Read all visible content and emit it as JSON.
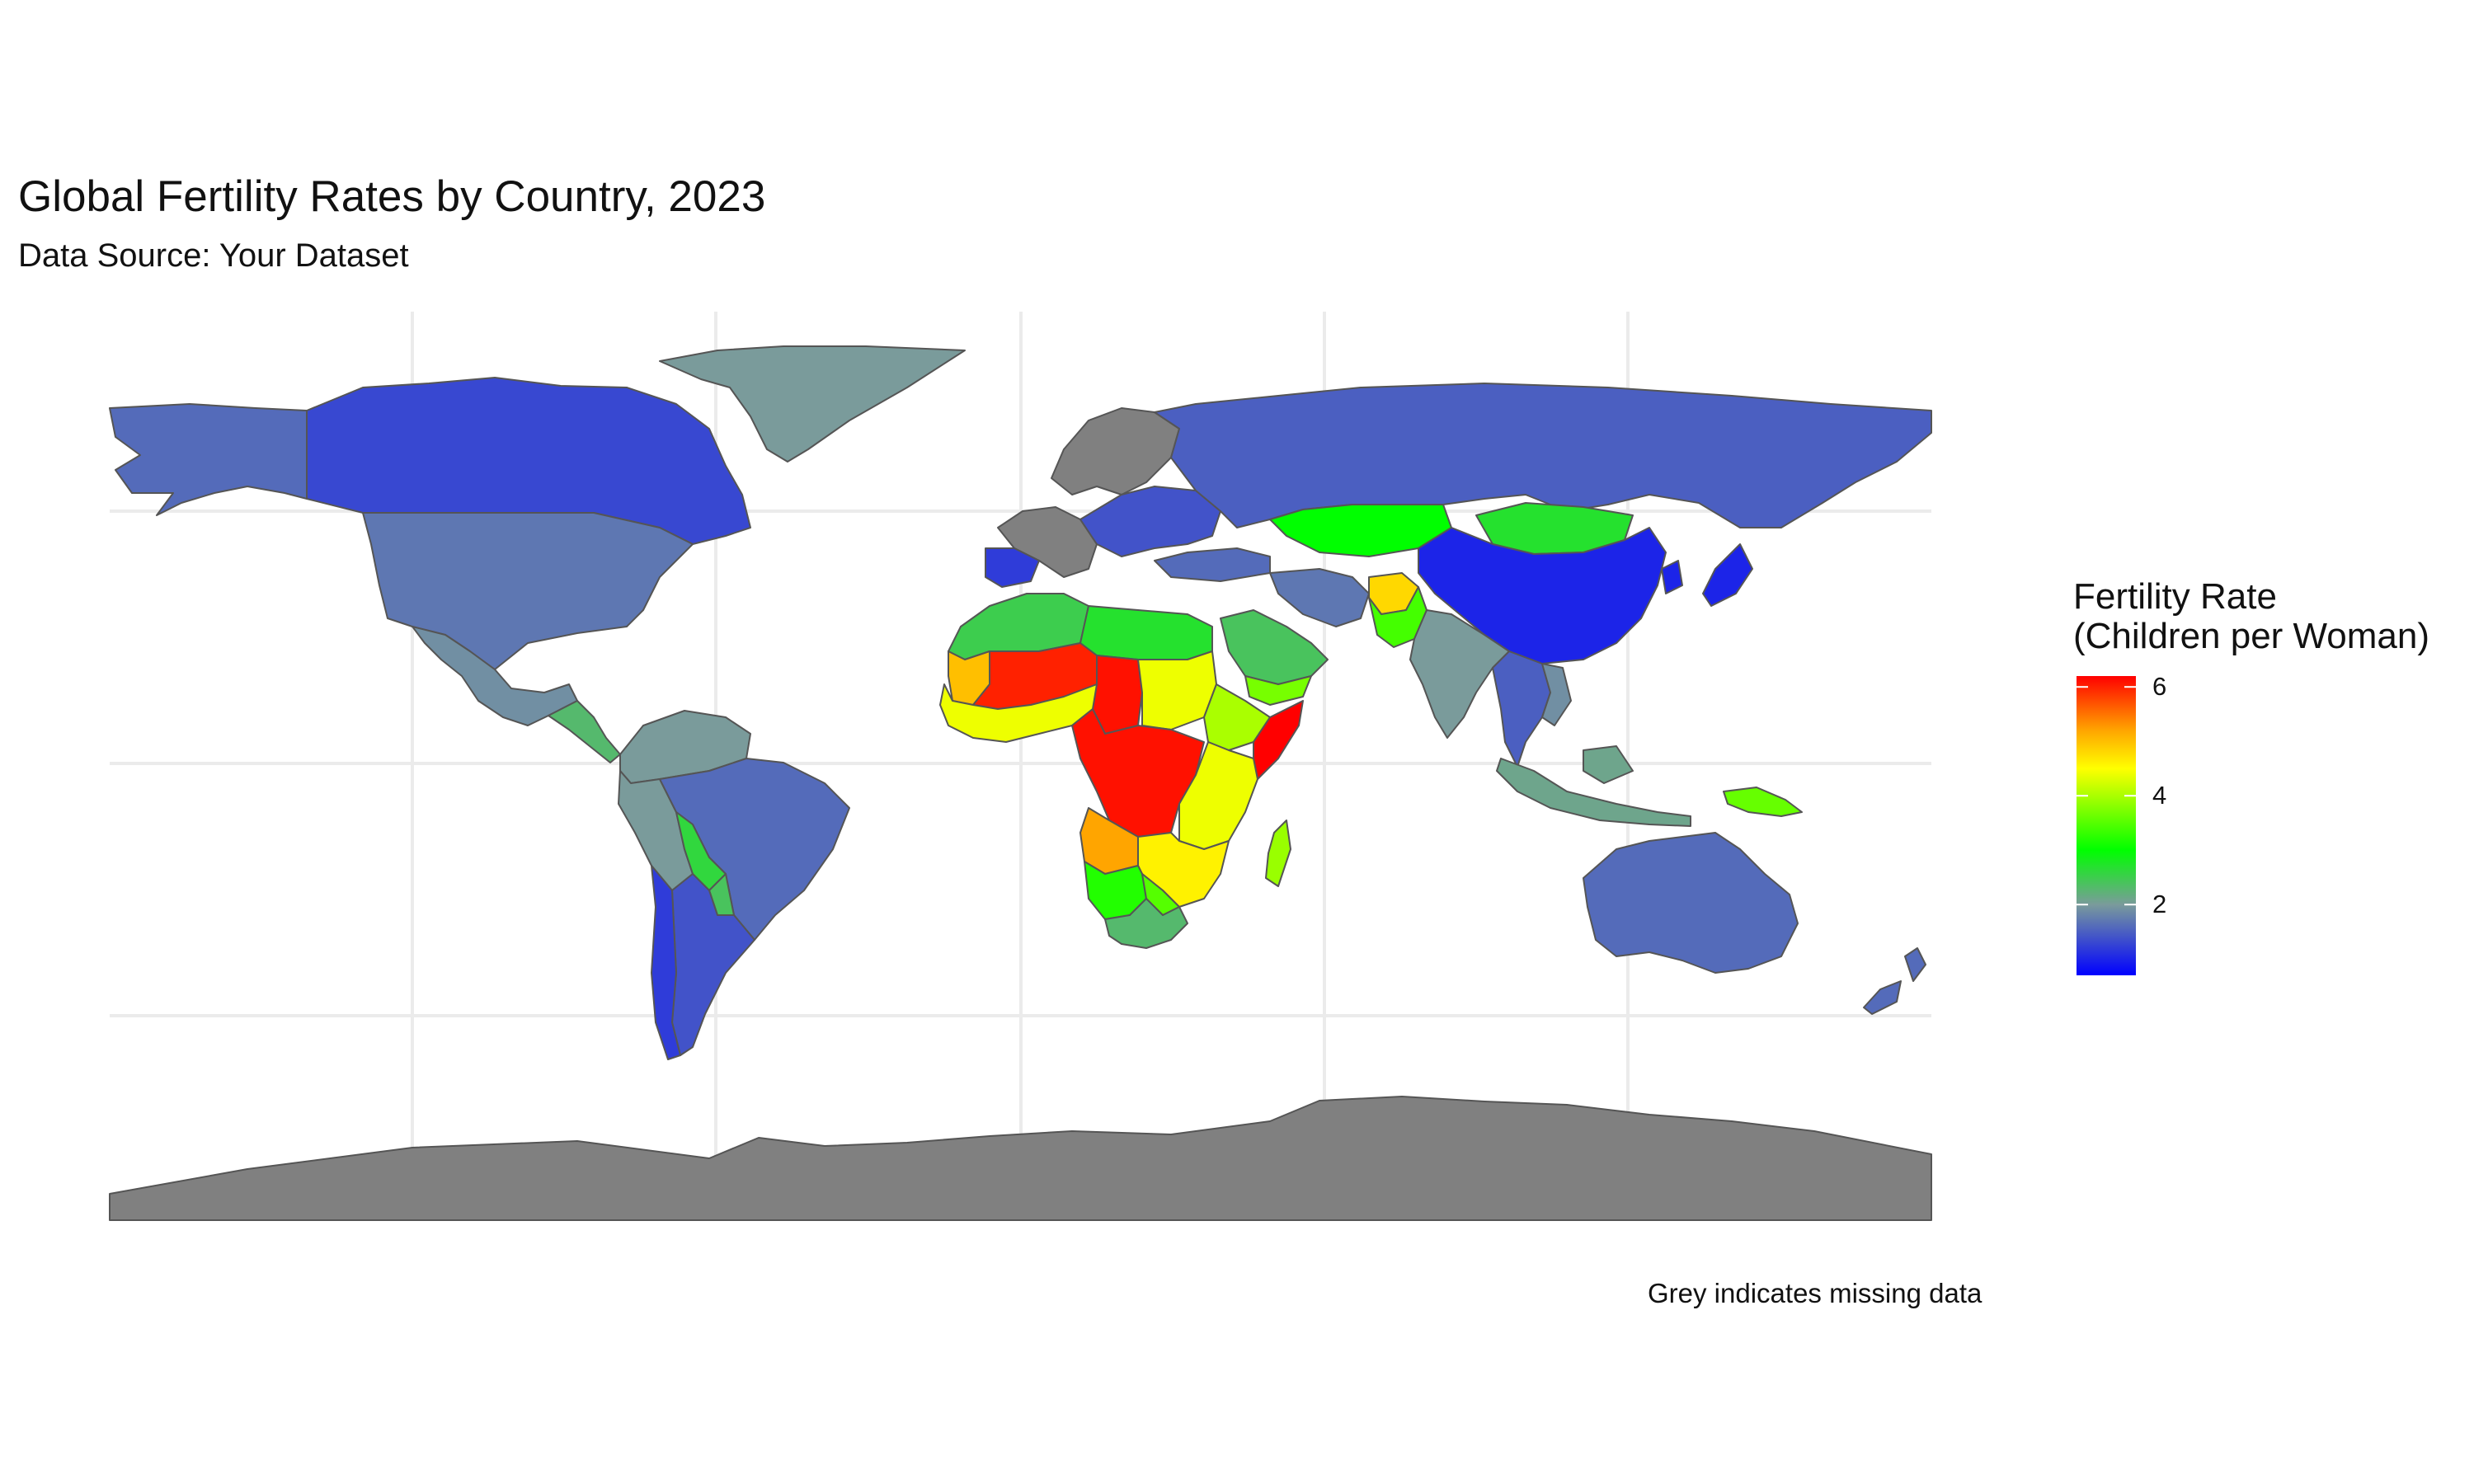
{
  "title": "Global Fertility Rates by Country, 2023",
  "subtitle": "Data Source: Your Dataset",
  "caption": "Grey indicates missing data",
  "legend": {
    "title_line1": "Fertility Rate",
    "title_line2": "(Children per Woman)",
    "min": 0.7,
    "max": 6.2,
    "ticks": [
      {
        "value": 6,
        "label": "6"
      },
      {
        "value": 4,
        "label": "4"
      },
      {
        "value": 2,
        "label": "2"
      }
    ],
    "scale": [
      {
        "value": 0.7,
        "color": "#0000ff"
      },
      {
        "value": 2.0,
        "color": "#7a9b9b"
      },
      {
        "value": 3.0,
        "color": "#00ff00"
      },
      {
        "value": 4.5,
        "color": "#ffff00"
      },
      {
        "value": 5.2,
        "color": "#ffa500"
      },
      {
        "value": 6.2,
        "color": "#ff0000"
      }
    ]
  },
  "colors": {
    "missing": "#808080",
    "border": "#555555",
    "grid": "#ebebeb",
    "background": "#ffffff"
  },
  "chart_data": {
    "type": "choropleth",
    "regions": [
      {
        "name": "Antarctica",
        "value": null
      },
      {
        "name": "Greenland",
        "value": 2.0
      },
      {
        "name": "Alaska",
        "value": 1.6
      },
      {
        "name": "Canada",
        "value": 1.3
      },
      {
        "name": "United States",
        "value": 1.7
      },
      {
        "name": "Mexico",
        "value": 1.9
      },
      {
        "name": "Central America",
        "value": 2.3
      },
      {
        "name": "Colombia & Venezuela",
        "value": 2.0
      },
      {
        "name": "Peru & Ecuador",
        "value": 2.0
      },
      {
        "name": "Brazil",
        "value": 1.6
      },
      {
        "name": "Bolivia",
        "value": 2.6
      },
      {
        "name": "Paraguay",
        "value": 2.4
      },
      {
        "name": "Argentina",
        "value": 1.4
      },
      {
        "name": "Chile",
        "value": 1.2
      },
      {
        "name": "Scandinavia",
        "value": null
      },
      {
        "name": "Western Europe",
        "value": null
      },
      {
        "name": "Iberia",
        "value": 1.2
      },
      {
        "name": "Eastern Europe",
        "value": 1.4
      },
      {
        "name": "Russia",
        "value": 1.5
      },
      {
        "name": "Turkey",
        "value": 1.6
      },
      {
        "name": "Kazakhstan",
        "value": 3.0
      },
      {
        "name": "Mongolia",
        "value": 2.7
      },
      {
        "name": "China",
        "value": 1.0
      },
      {
        "name": "Korea & Japan",
        "value": 1.0
      },
      {
        "name": "Iran",
        "value": 1.7
      },
      {
        "name": "Afghanistan",
        "value": 4.8
      },
      {
        "name": "Pakistan",
        "value": 3.4
      },
      {
        "name": "India",
        "value": 2.0
      },
      {
        "name": "Southeast Asia",
        "value": 1.5
      },
      {
        "name": "Vietnam",
        "value": 1.9
      },
      {
        "name": "Indonesia",
        "value": 2.1
      },
      {
        "name": "Papua New Guinea",
        "value": 3.6
      },
      {
        "name": "Australia",
        "value": 1.6
      },
      {
        "name": "New Zealand",
        "value": 1.6
      },
      {
        "name": "Saudi Arabia & Gulf",
        "value": 2.4
      },
      {
        "name": "Yemen",
        "value": 3.7
      },
      {
        "name": "Northwest Africa",
        "value": 2.5
      },
      {
        "name": "Libya & Egypt",
        "value": 2.7
      },
      {
        "name": "Mali & Niger",
        "value": 6.0
      },
      {
        "name": "Mauritania",
        "value": 5.0
      },
      {
        "name": "West African Coast",
        "value": 4.4
      },
      {
        "name": "Chad",
        "value": 6.1
      },
      {
        "name": "Sudan",
        "value": 4.4
      },
      {
        "name": "Ethiopia",
        "value": 4.0
      },
      {
        "name": "Somalia",
        "value": 6.2
      },
      {
        "name": "Central Africa",
        "value": 6.1
      },
      {
        "name": "Kenya & Tanzania",
        "value": 4.4
      },
      {
        "name": "Angola",
        "value": 5.2
      },
      {
        "name": "Zambia & Mozambique",
        "value": 4.6
      },
      {
        "name": "Namibia & Botswana",
        "value": 3.2
      },
      {
        "name": "Zimbabwe",
        "value": 3.5
      },
      {
        "name": "South Africa",
        "value": 2.3
      },
      {
        "name": "Madagascar",
        "value": 3.9
      }
    ]
  }
}
